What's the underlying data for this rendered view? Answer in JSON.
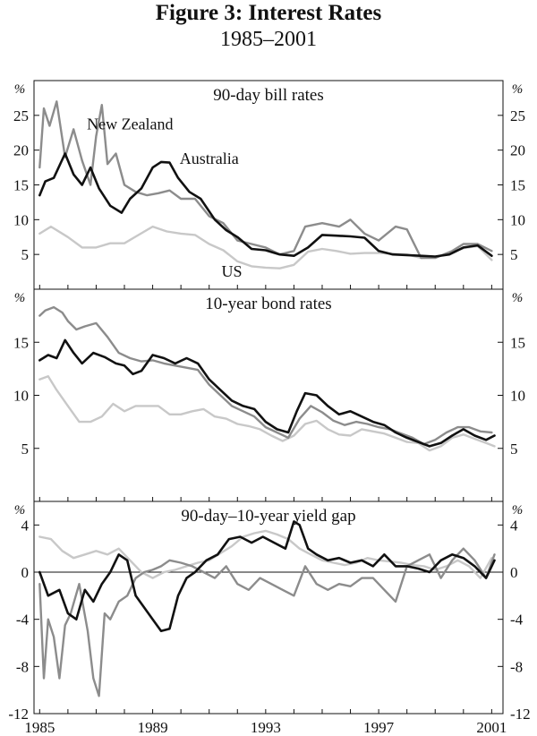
{
  "title": "Figure 3: Interest Rates",
  "subtitle": "1985–2001",
  "colors": {
    "australia": "#111111",
    "new_zealand": "#8c8c8c",
    "us": "#c8c8c8"
  },
  "x_ticks": [
    "1985",
    "1989",
    "1993",
    "1997",
    "2001"
  ],
  "chart_data": [
    {
      "type": "line",
      "title": "90-day bill rates",
      "unit": "%",
      "xlim": [
        1984.8,
        2001.4
      ],
      "ylim": [
        0,
        30
      ],
      "yticks": [
        5,
        10,
        15,
        20,
        25
      ],
      "annotations": [
        {
          "text": "New Zealand",
          "x": 1988.2,
          "y": 23.0
        },
        {
          "text": "Australia",
          "x": 1991.0,
          "y": 18.0
        },
        {
          "text": "US",
          "x": 1991.8,
          "y": 1.8
        }
      ],
      "series": [
        {
          "name": "Australia",
          "color_key": "australia",
          "x": [
            1985.0,
            1985.2,
            1985.5,
            1985.9,
            1986.2,
            1986.5,
            1986.8,
            1987.1,
            1987.5,
            1987.9,
            1988.2,
            1988.6,
            1989.0,
            1989.3,
            1989.6,
            1989.9,
            1990.3,
            1990.7,
            1991.2,
            1991.6,
            1992.0,
            1992.5,
            1993.0,
            1993.5,
            1994.0,
            1994.5,
            1995.0,
            1995.5,
            1996.0,
            1996.5,
            1997.0,
            1997.5,
            1998.0,
            1998.5,
            1999.0,
            1999.5,
            2000.0,
            2000.5,
            2001.0
          ],
          "y": [
            13.5,
            15.5,
            16.0,
            19.5,
            16.5,
            15.0,
            17.5,
            14.5,
            12.0,
            11.0,
            13.0,
            14.5,
            17.5,
            18.3,
            18.2,
            16.0,
            14.0,
            13.0,
            10.0,
            8.5,
            7.5,
            5.8,
            5.6,
            5.0,
            4.8,
            6.0,
            7.8,
            7.7,
            7.6,
            7.4,
            5.5,
            5.0,
            4.9,
            4.8,
            4.7,
            5.0,
            6.0,
            6.3,
            4.8
          ]
        },
        {
          "name": "New Zealand",
          "color_key": "new_zealand",
          "x": [
            1985.0,
            1985.15,
            1985.35,
            1985.6,
            1985.9,
            1986.2,
            1986.5,
            1986.8,
            1987.0,
            1987.2,
            1987.4,
            1987.7,
            1988.0,
            1988.4,
            1988.8,
            1989.2,
            1989.6,
            1990.0,
            1990.5,
            1991.0,
            1991.5,
            1992.0,
            1992.5,
            1993.0,
            1993.5,
            1994.0,
            1994.4,
            1995.0,
            1995.6,
            1996.0,
            1996.5,
            1997.0,
            1997.6,
            1998.0,
            1998.5,
            1999.0,
            1999.6,
            2000.0,
            2000.5,
            2001.0
          ],
          "y": [
            17.5,
            26.0,
            23.5,
            27.0,
            19.0,
            23.0,
            18.5,
            15.0,
            22.0,
            26.5,
            18.0,
            19.5,
            15.0,
            14.0,
            13.5,
            13.8,
            14.2,
            13.0,
            13.0,
            10.5,
            9.5,
            7.0,
            6.5,
            6.0,
            5.0,
            5.5,
            9.0,
            9.5,
            9.0,
            10.0,
            8.0,
            7.0,
            9.0,
            8.6,
            4.5,
            4.5,
            5.5,
            6.5,
            6.5,
            5.5
          ]
        },
        {
          "name": "US",
          "color_key": "us",
          "x": [
            1985.0,
            1985.4,
            1986.0,
            1986.5,
            1987.0,
            1987.5,
            1988.0,
            1988.5,
            1989.0,
            1989.5,
            1990.0,
            1990.5,
            1991.0,
            1991.5,
            1992.0,
            1992.5,
            1993.0,
            1993.5,
            1994.0,
            1994.5,
            1995.0,
            1995.5,
            1996.0,
            1996.5,
            1997.0,
            1997.5,
            1998.0,
            1998.5,
            1999.0,
            1999.5,
            2000.0,
            2000.5,
            2001.0
          ],
          "y": [
            8.0,
            9.0,
            7.5,
            6.0,
            6.0,
            6.6,
            6.6,
            7.8,
            9.0,
            8.3,
            8.0,
            7.8,
            6.5,
            5.6,
            4.0,
            3.3,
            3.1,
            3.0,
            3.5,
            5.4,
            5.8,
            5.5,
            5.1,
            5.2,
            5.2,
            5.1,
            5.0,
            4.5,
            4.6,
            5.2,
            5.9,
            6.2,
            4.2
          ]
        }
      ]
    },
    {
      "type": "line",
      "title": "10-year bond rates",
      "unit": "%",
      "xlim": [
        1984.8,
        2001.4
      ],
      "ylim": [
        0,
        20
      ],
      "yticks": [
        5,
        10,
        15
      ],
      "annotations": [],
      "series": [
        {
          "name": "Australia",
          "color_key": "australia",
          "x": [
            1985.0,
            1985.3,
            1985.6,
            1985.9,
            1986.2,
            1986.5,
            1986.9,
            1987.3,
            1987.7,
            1988.0,
            1988.3,
            1988.6,
            1989.0,
            1989.4,
            1989.8,
            1990.2,
            1990.6,
            1991.0,
            1991.4,
            1991.8,
            1992.2,
            1992.6,
            1993.0,
            1993.4,
            1993.8,
            1994.1,
            1994.4,
            1994.8,
            1995.2,
            1995.6,
            1996.0,
            1996.4,
            1996.8,
            1997.2,
            1997.6,
            1998.0,
            1998.4,
            1998.8,
            1999.2,
            1999.6,
            2000.0,
            2000.4,
            2000.8,
            2001.1
          ],
          "y": [
            13.3,
            13.8,
            13.5,
            15.2,
            14.0,
            13.0,
            14.0,
            13.6,
            13.0,
            12.8,
            12.0,
            12.3,
            13.8,
            13.5,
            13.0,
            13.5,
            13.0,
            11.5,
            10.5,
            9.5,
            9.0,
            8.7,
            7.5,
            6.8,
            6.5,
            8.5,
            10.2,
            10.0,
            9.0,
            8.2,
            8.5,
            8.0,
            7.5,
            7.2,
            6.5,
            6.0,
            5.6,
            5.2,
            5.5,
            6.2,
            6.8,
            6.2,
            5.8,
            6.2
          ]
        },
        {
          "name": "New Zealand",
          "color_key": "new_zealand",
          "x": [
            1985.0,
            1985.2,
            1985.5,
            1985.8,
            1986.0,
            1986.3,
            1986.6,
            1987.0,
            1987.4,
            1987.8,
            1988.2,
            1988.6,
            1989.0,
            1989.4,
            1989.8,
            1990.2,
            1990.6,
            1991.0,
            1991.4,
            1991.8,
            1992.2,
            1992.6,
            1993.0,
            1993.4,
            1993.8,
            1994.2,
            1994.6,
            1995.0,
            1995.4,
            1995.8,
            1996.2,
            1996.6,
            1997.0,
            1997.4,
            1997.8,
            1998.2,
            1998.6,
            1999.0,
            1999.4,
            1999.8,
            2000.2,
            2000.6,
            2001.0
          ],
          "y": [
            17.5,
            18.0,
            18.3,
            17.8,
            17.0,
            16.2,
            16.5,
            16.8,
            15.5,
            14.0,
            13.5,
            13.2,
            13.3,
            13.0,
            12.8,
            12.6,
            12.4,
            11.0,
            10.0,
            9.0,
            8.5,
            8.0,
            7.0,
            6.5,
            6.0,
            7.8,
            9.0,
            8.4,
            7.6,
            7.2,
            7.5,
            7.3,
            7.0,
            6.8,
            6.4,
            6.0,
            5.4,
            5.8,
            6.5,
            7.0,
            7.0,
            6.6,
            6.5
          ]
        },
        {
          "name": "US",
          "color_key": "us",
          "x": [
            1985.0,
            1985.3,
            1985.6,
            1986.0,
            1986.4,
            1986.8,
            1987.2,
            1987.6,
            1988.0,
            1988.4,
            1988.8,
            1989.2,
            1989.6,
            1990.0,
            1990.4,
            1990.8,
            1991.2,
            1991.6,
            1992.0,
            1992.4,
            1992.8,
            1993.2,
            1993.6,
            1994.0,
            1994.4,
            1994.8,
            1995.2,
            1995.6,
            1996.0,
            1996.4,
            1996.8,
            1997.2,
            1997.6,
            1998.0,
            1998.4,
            1998.8,
            1999.2,
            1999.6,
            2000.0,
            2000.4,
            2000.8,
            2001.1
          ],
          "y": [
            11.5,
            11.8,
            10.5,
            9.0,
            7.5,
            7.5,
            8.0,
            9.2,
            8.5,
            9.0,
            9.0,
            9.0,
            8.2,
            8.2,
            8.5,
            8.7,
            8.0,
            7.8,
            7.3,
            7.1,
            6.8,
            6.2,
            5.7,
            6.2,
            7.3,
            7.6,
            6.8,
            6.3,
            6.2,
            6.8,
            6.6,
            6.4,
            6.0,
            5.6,
            5.5,
            4.8,
            5.2,
            6.0,
            6.3,
            5.9,
            5.5,
            5.2
          ]
        }
      ]
    },
    {
      "type": "line",
      "title": "90-day–10-year yield gap",
      "unit": "%",
      "xlim": [
        1984.8,
        2001.4
      ],
      "ylim": [
        -12,
        6
      ],
      "yticks": [
        -12,
        -8,
        -4,
        0,
        4
      ],
      "annotations": [],
      "series": [
        {
          "name": "Australia",
          "color_key": "australia",
          "x": [
            1985.0,
            1985.3,
            1985.7,
            1986.0,
            1986.3,
            1986.6,
            1986.9,
            1987.2,
            1987.5,
            1987.8,
            1988.1,
            1988.4,
            1988.7,
            1989.0,
            1989.3,
            1989.6,
            1989.9,
            1990.2,
            1990.5,
            1990.9,
            1991.3,
            1991.7,
            1992.1,
            1992.5,
            1992.9,
            1993.3,
            1993.7,
            1994.0,
            1994.2,
            1994.5,
            1994.8,
            1995.2,
            1995.6,
            1996.0,
            1996.4,
            1996.8,
            1997.2,
            1997.6,
            1998.0,
            1998.4,
            1998.8,
            1999.2,
            1999.6,
            2000.0,
            2000.4,
            2000.8,
            2001.1
          ],
          "y": [
            0.0,
            -2.0,
            -1.5,
            -3.5,
            -4.0,
            -1.5,
            -2.5,
            -1.0,
            0.0,
            1.5,
            1.0,
            -2.0,
            -3.0,
            -4.0,
            -5.0,
            -4.8,
            -2.0,
            -0.5,
            0.0,
            1.0,
            1.5,
            2.8,
            3.0,
            2.5,
            3.0,
            2.5,
            2.0,
            4.3,
            4.0,
            2.0,
            1.5,
            1.0,
            1.2,
            0.8,
            1.0,
            0.5,
            1.5,
            0.5,
            0.5,
            0.3,
            0.0,
            1.0,
            1.5,
            1.2,
            0.5,
            -0.5,
            1.0
          ]
        },
        {
          "name": "New Zealand",
          "color_key": "new_zealand",
          "x": [
            1985.0,
            1985.15,
            1985.3,
            1985.5,
            1985.7,
            1985.9,
            1986.1,
            1986.4,
            1986.7,
            1986.9,
            1987.1,
            1987.3,
            1987.5,
            1987.8,
            1988.1,
            1988.4,
            1988.7,
            1989.0,
            1989.3,
            1989.6,
            1990.0,
            1990.4,
            1990.8,
            1991.2,
            1991.6,
            1992.0,
            1992.4,
            1992.8,
            1993.2,
            1993.6,
            1994.0,
            1994.4,
            1994.8,
            1995.2,
            1995.6,
            1996.0,
            1996.4,
            1996.8,
            1997.2,
            1997.6,
            1998.0,
            1998.4,
            1998.8,
            1999.2,
            1999.6,
            2000.0,
            2000.4,
            2000.8,
            2001.1
          ],
          "y": [
            -1.0,
            -9.0,
            -4.0,
            -5.5,
            -9.0,
            -4.5,
            -3.5,
            -1.0,
            -5.0,
            -9.0,
            -10.5,
            -3.5,
            -4.0,
            -2.5,
            -2.0,
            -0.5,
            0.0,
            0.2,
            0.5,
            1.0,
            0.8,
            0.5,
            0.0,
            -0.5,
            0.5,
            -1.0,
            -1.5,
            -0.5,
            -1.0,
            -1.5,
            -2.0,
            0.5,
            -1.0,
            -1.5,
            -1.0,
            -1.2,
            -0.5,
            -0.5,
            -1.5,
            -2.5,
            0.5,
            1.0,
            1.5,
            -0.5,
            1.0,
            2.0,
            1.0,
            -0.5,
            1.5
          ]
        },
        {
          "name": "US",
          "color_key": "us",
          "x": [
            1985.0,
            1985.4,
            1985.8,
            1986.2,
            1986.6,
            1987.0,
            1987.4,
            1987.8,
            1988.2,
            1988.6,
            1989.0,
            1989.4,
            1989.8,
            1990.2,
            1990.6,
            1991.0,
            1991.4,
            1991.8,
            1992.2,
            1992.6,
            1993.0,
            1993.4,
            1993.8,
            1994.2,
            1994.6,
            1995.0,
            1995.4,
            1995.8,
            1996.2,
            1996.6,
            1997.0,
            1997.4,
            1997.8,
            1998.2,
            1998.6,
            1999.0,
            1999.4,
            1999.8,
            2000.2,
            2000.6,
            2001.0
          ],
          "y": [
            3.0,
            2.8,
            1.8,
            1.2,
            1.5,
            1.8,
            1.5,
            2.0,
            1.0,
            0.0,
            -0.5,
            0.0,
            0.2,
            0.5,
            0.8,
            1.0,
            1.6,
            2.2,
            3.0,
            3.3,
            3.5,
            3.2,
            2.8,
            2.0,
            1.5,
            1.0,
            0.8,
            0.6,
            0.8,
            1.2,
            1.0,
            0.9,
            0.8,
            0.6,
            0.5,
            0.2,
            0.5,
            1.0,
            0.5,
            -0.5,
            1.2
          ]
        }
      ]
    }
  ]
}
